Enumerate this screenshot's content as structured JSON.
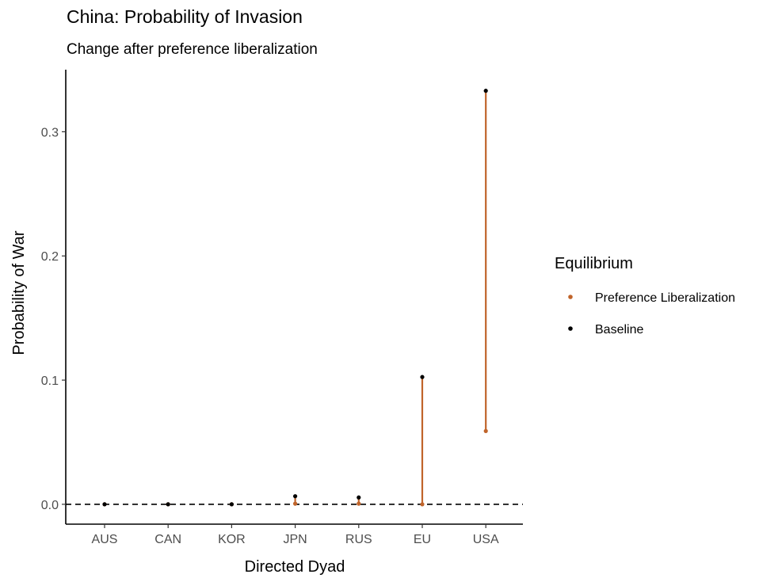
{
  "chart_data": {
    "type": "dumbbell",
    "title": "China: Probability of Invasion",
    "subtitle": "Change after preference liberalization",
    "xlabel": "Directed Dyad",
    "ylabel": "Probability of War",
    "categories": [
      "AUS",
      "CAN",
      "KOR",
      "JPN",
      "RUS",
      "EU",
      "USA"
    ],
    "ylim": [
      -0.016,
      0.35
    ],
    "yticks": [
      0.0,
      0.1,
      0.2,
      0.3
    ],
    "ytick_labels": [
      "0.0",
      "0.1",
      "0.2",
      "0.3"
    ],
    "reference_line": {
      "y": 0.0,
      "style": "dashed"
    },
    "legend": {
      "title": "Equilibrium",
      "position": "right"
    },
    "series": [
      {
        "name": "Preference Liberalization",
        "color": "#C0642A",
        "values": [
          0.0,
          0.0,
          0.0,
          0.0005,
          0.0005,
          0.0,
          0.059
        ]
      },
      {
        "name": "Baseline",
        "color": "#000000",
        "values": [
          0.0,
          0.0,
          0.0,
          0.0065,
          0.0055,
          0.1025,
          0.333
        ]
      }
    ],
    "segment_color": "#C0642A"
  }
}
